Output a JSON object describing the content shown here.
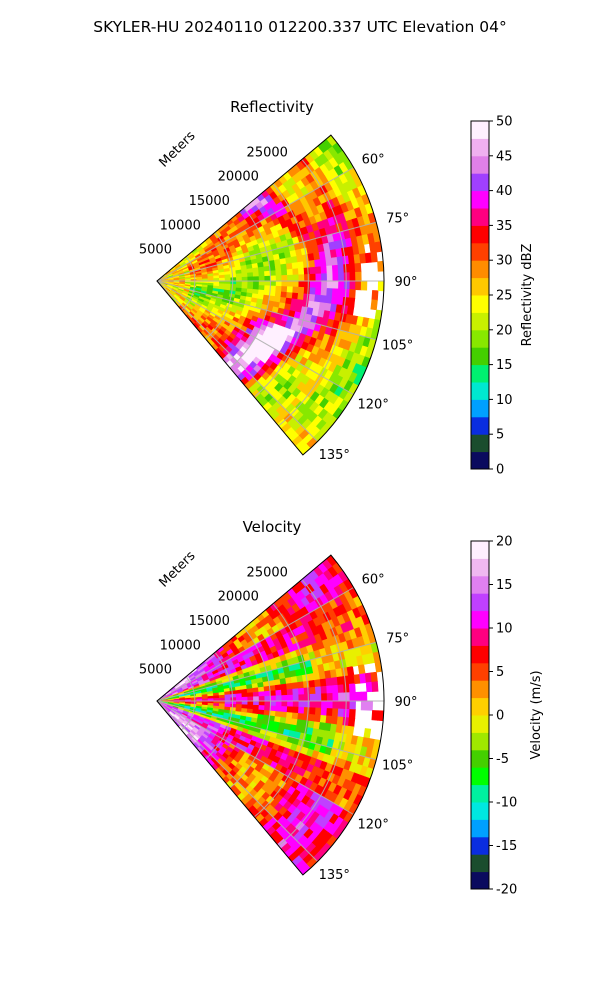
{
  "figure": {
    "title": "SKYLER-HU  20240110  012200.337 UTC Elevation 04°"
  },
  "chart_data": [
    {
      "type": "heatmap",
      "title": "Reflectivity",
      "radial_label": "Meters",
      "radial_ticks": [
        5000,
        10000,
        15000,
        20000,
        25000
      ],
      "rlim": [
        0,
        30000
      ],
      "azimuth_ticks": [
        "60°",
        "75°",
        "90°",
        "105°",
        "120°",
        "135°"
      ],
      "azimuth_values": [
        60,
        75,
        90,
        105,
        120,
        135
      ],
      "thetalim": [
        50,
        140
      ],
      "grid": true,
      "colorbar": {
        "label": "Reflectivity dBZ",
        "ticks": [
          0,
          5,
          10,
          15,
          20,
          25,
          30,
          35,
          40,
          45,
          50
        ],
        "range": [
          0,
          50
        ]
      }
    },
    {
      "type": "heatmap",
      "title": "Velocity",
      "radial_label": "Meters",
      "radial_ticks": [
        5000,
        10000,
        15000,
        20000,
        25000
      ],
      "rlim": [
        0,
        30000
      ],
      "azimuth_ticks": [
        "60°",
        "75°",
        "90°",
        "105°",
        "120°",
        "135°"
      ],
      "azimuth_values": [
        60,
        75,
        90,
        105,
        120,
        135
      ],
      "thetalim": [
        50,
        140
      ],
      "grid": true,
      "colorbar": {
        "label": "Velocity (m/s)",
        "ticks": [
          -20,
          -15,
          -10,
          -5,
          0,
          5,
          10,
          15,
          20
        ],
        "range": [
          -20,
          20
        ]
      }
    }
  ],
  "palettes": {
    "reflectivity": [
      "#0a0a5e",
      "#1a4d2e",
      "#0a2de0",
      "#00a0ff",
      "#00e8d0",
      "#00f070",
      "#44d000",
      "#88e800",
      "#c8f000",
      "#ffff00",
      "#ffc800",
      "#ff8c00",
      "#ff4000",
      "#ff0000",
      "#ff0080",
      "#ff00ff",
      "#a040ff",
      "#e080e8",
      "#f0b0f0",
      "#fff0ff"
    ],
    "velocity": [
      "#0a0a5e",
      "#1a4d2e",
      "#0a2de0",
      "#00a0ff",
      "#00e8e0",
      "#00f0a0",
      "#00ff00",
      "#44d000",
      "#a0e800",
      "#e8f000",
      "#ffd000",
      "#ff9000",
      "#ff4000",
      "#ff0000",
      "#ff0080",
      "#ff00ff",
      "#c040ff",
      "#e080f0",
      "#f0b8f0",
      "#fff0ff"
    ]
  }
}
